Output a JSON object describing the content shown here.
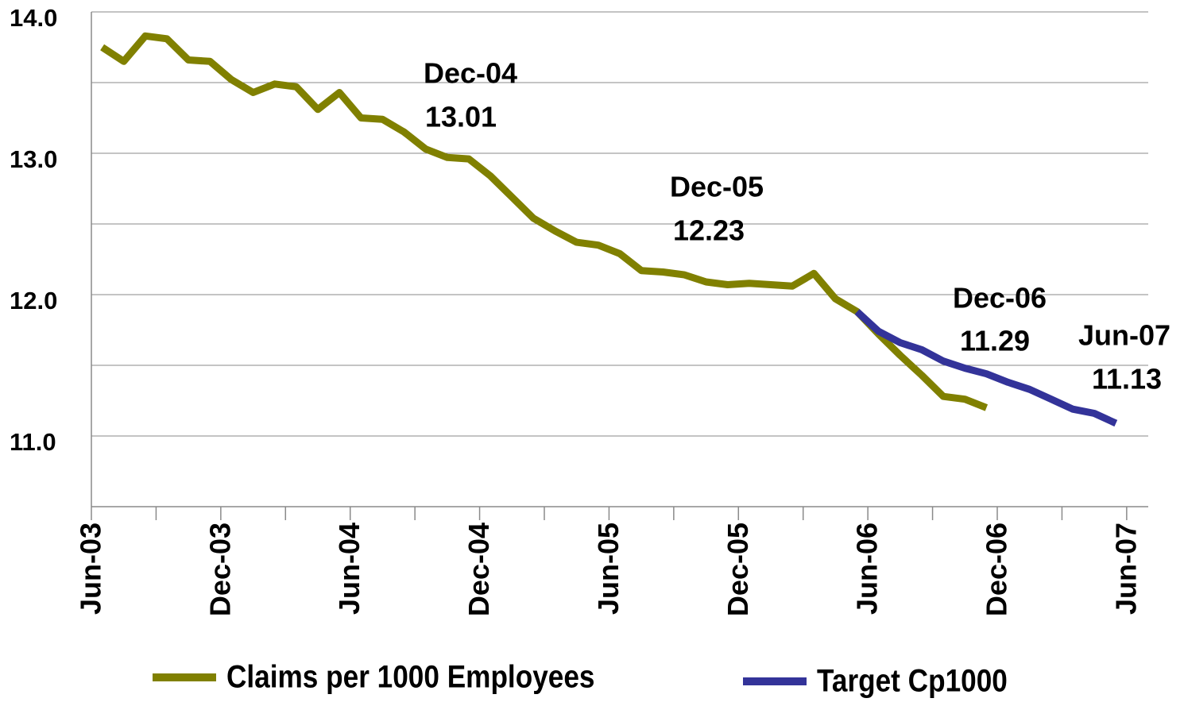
{
  "chart_data": {
    "type": "line",
    "categories": [
      "Jun-03",
      null,
      null,
      null,
      null,
      null,
      "Dec-03",
      null,
      null,
      null,
      null,
      null,
      "Jun-04",
      null,
      null,
      null,
      null,
      null,
      "Dec-04",
      null,
      null,
      null,
      null,
      null,
      "Jun-05",
      null,
      null,
      null,
      null,
      null,
      "Dec-05",
      null,
      null,
      null,
      null,
      null,
      "Jun-06",
      null,
      null,
      null,
      null,
      null,
      "Dec-06",
      null,
      null,
      null,
      null,
      null,
      "Jun-07"
    ],
    "series": [
      {
        "name": "Claims per 1000 Employees",
        "color": "#808000",
        "values": [
          13.75,
          13.65,
          13.83,
          13.81,
          13.66,
          13.65,
          13.52,
          13.43,
          13.49,
          13.47,
          13.31,
          13.43,
          13.25,
          13.24,
          13.15,
          13.03,
          12.97,
          12.96,
          12.84,
          12.69,
          12.54,
          12.45,
          12.37,
          12.35,
          12.29,
          12.17,
          12.16,
          12.14,
          12.09,
          12.07,
          12.08,
          12.07,
          12.06,
          12.15,
          11.97,
          11.88,
          11.72,
          11.57,
          11.43,
          11.28,
          11.26,
          11.2,
          null,
          null,
          null,
          null,
          null,
          null,
          null
        ]
      },
      {
        "name": "Target Cp1000",
        "color": "#333399",
        "values": [
          null,
          null,
          null,
          null,
          null,
          null,
          null,
          null,
          null,
          null,
          null,
          null,
          null,
          null,
          null,
          null,
          null,
          null,
          null,
          null,
          null,
          null,
          null,
          null,
          null,
          null,
          null,
          null,
          null,
          null,
          null,
          null,
          null,
          null,
          null,
          11.88,
          11.74,
          11.66,
          11.61,
          11.53,
          11.48,
          11.44,
          11.38,
          11.33,
          11.26,
          11.19,
          11.16,
          11.09,
          null
        ]
      }
    ],
    "ylim": [
      10.5,
      14.0
    ],
    "yticks": [
      {
        "value": 11,
        "label": "11.0"
      },
      {
        "value": 12,
        "label": "12.0"
      },
      {
        "value": 13,
        "label": "13.0"
      },
      {
        "value": 14,
        "label": "14.0"
      }
    ],
    "ygrid_minor": [
      11.5,
      12.5,
      13.5
    ],
    "grid": true,
    "legend": "bottom",
    "annotations": [
      {
        "text": "Dec-04",
        "value": 13.01
      },
      {
        "text": "Dec-05",
        "value": 12.23
      },
      {
        "text": "Dec-06",
        "value": 11.29
      },
      {
        "text": "Jun-07",
        "value": 11.13
      }
    ]
  }
}
